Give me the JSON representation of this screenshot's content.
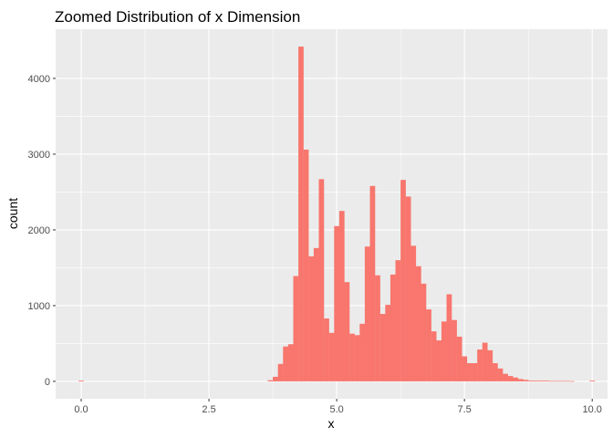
{
  "chart_data": {
    "type": "bar",
    "title": "Zoomed Distribution of x Dimension",
    "xlabel": "x",
    "ylabel": "count",
    "xlim": [
      -0.5,
      10.3
    ],
    "ylim": [
      -230,
      4650
    ],
    "x_ticks": [
      0.0,
      2.5,
      5.0,
      7.5,
      10.0
    ],
    "x_tick_labels": [
      "0.0",
      "2.5",
      "5.0",
      "7.5",
      "10.0"
    ],
    "y_ticks": [
      0,
      1000,
      2000,
      3000,
      4000
    ],
    "y_tick_labels": [
      "0",
      "1000",
      "2000",
      "3000",
      "4000"
    ],
    "bin_width": 0.1,
    "bar_color": "#F8766D",
    "panel_color": "#EBEBEB",
    "grid": true,
    "x": [
      0.0,
      3.7,
      3.8,
      3.9,
      4.0,
      4.1,
      4.2,
      4.3,
      4.4,
      4.5,
      4.6,
      4.7,
      4.8,
      4.9,
      5.0,
      5.1,
      5.2,
      5.3,
      5.4,
      5.5,
      5.6,
      5.7,
      5.8,
      5.9,
      6.0,
      6.1,
      6.2,
      6.3,
      6.4,
      6.5,
      6.6,
      6.7,
      6.8,
      6.9,
      7.0,
      7.1,
      7.2,
      7.3,
      7.4,
      7.5,
      7.6,
      7.7,
      7.8,
      7.9,
      8.0,
      8.1,
      8.2,
      8.3,
      8.4,
      8.5,
      8.6,
      8.7,
      8.8,
      8.9,
      9.0,
      9.1,
      9.2,
      9.3,
      9.4,
      9.5,
      9.6,
      10.0
    ],
    "values": [
      10,
      15,
      60,
      230,
      460,
      490,
      1390,
      4420,
      3060,
      1650,
      1760,
      2670,
      830,
      640,
      2050,
      2250,
      1310,
      630,
      610,
      760,
      1780,
      2580,
      1400,
      890,
      1010,
      1410,
      1600,
      2660,
      2440,
      1790,
      1520,
      1290,
      950,
      660,
      540,
      790,
      1150,
      810,
      590,
      330,
      240,
      240,
      420,
      510,
      410,
      240,
      170,
      100,
      70,
      50,
      30,
      20,
      10,
      10,
      10,
      10,
      5,
      5,
      5,
      5,
      3,
      10
    ]
  }
}
